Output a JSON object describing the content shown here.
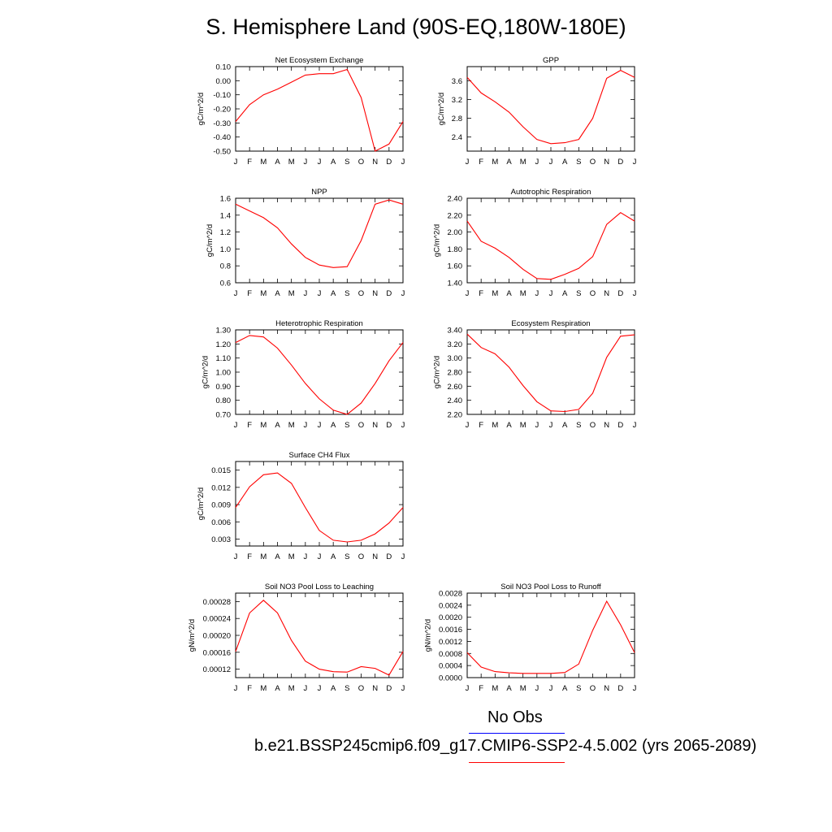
{
  "title": "S. Hemisphere Land (90S-EQ,180W-180E)",
  "colors": {
    "model_line": "#ff0000",
    "obs_line": "#0000ff",
    "axis": "#000000"
  },
  "legend": [
    {
      "label": "No Obs",
      "color": "#0000ff"
    },
    {
      "label": "b.e21.BSSP245cmip6.f09_g17.CMIP6-SSP2-4.5.002 (yrs 2065-2089)",
      "color": "#ff0000"
    }
  ],
  "chart_data": [
    {
      "type": "line",
      "title": "Net Ecosystem Exchange",
      "ylabel": "gC/m^2/d",
      "categories": [
        "J",
        "F",
        "M",
        "A",
        "M",
        "J",
        "J",
        "A",
        "S",
        "O",
        "N",
        "D",
        "J"
      ],
      "ylim": [
        -0.5,
        0.1
      ],
      "yticks": [
        0.1,
        0.0,
        -0.1,
        -0.2,
        -0.3,
        -0.4,
        -0.5
      ],
      "ytick_labels": [
        "0.10",
        "0.00",
        "-0.10",
        "-0.20",
        "-0.30",
        "-0.40",
        "-0.50"
      ],
      "series": [
        {
          "values": [
            -0.29,
            -0.17,
            -0.1,
            -0.06,
            -0.01,
            0.04,
            0.05,
            0.05,
            0.08,
            -0.12,
            -0.5,
            -0.45,
            -0.29
          ]
        }
      ]
    },
    {
      "type": "line",
      "title": "GPP",
      "ylabel": "gC/m^2/d",
      "categories": [
        "J",
        "F",
        "M",
        "A",
        "M",
        "J",
        "J",
        "A",
        "S",
        "O",
        "N",
        "D",
        "J"
      ],
      "ylim": [
        2.1,
        3.9
      ],
      "yticks": [
        3.6,
        3.2,
        2.8,
        2.4
      ],
      "ytick_labels": [
        "3.6",
        "3.2",
        "2.8",
        "2.4"
      ],
      "series": [
        {
          "values": [
            3.67,
            3.34,
            3.15,
            2.93,
            2.62,
            2.35,
            2.26,
            2.28,
            2.35,
            2.8,
            3.65,
            3.82,
            3.67
          ]
        }
      ]
    },
    {
      "type": "line",
      "title": "NPP",
      "ylabel": "gC/m^2/d",
      "categories": [
        "J",
        "F",
        "M",
        "A",
        "M",
        "J",
        "J",
        "A",
        "S",
        "O",
        "N",
        "D",
        "J"
      ],
      "ylim": [
        0.6,
        1.6
      ],
      "yticks": [
        1.6,
        1.4,
        1.2,
        1.0,
        0.8,
        0.6
      ],
      "ytick_labels": [
        "1.6",
        "1.4",
        "1.2",
        "1.0",
        "0.8",
        "0.6"
      ],
      "series": [
        {
          "values": [
            1.53,
            1.45,
            1.37,
            1.25,
            1.06,
            0.9,
            0.81,
            0.78,
            0.79,
            1.1,
            1.53,
            1.58,
            1.53
          ]
        }
      ]
    },
    {
      "type": "line",
      "title": "Autotrophic Respiration",
      "ylabel": "gC/m^2/d",
      "categories": [
        "J",
        "F",
        "M",
        "A",
        "M",
        "J",
        "J",
        "A",
        "S",
        "O",
        "N",
        "D",
        "J"
      ],
      "ylim": [
        1.4,
        2.4
      ],
      "yticks": [
        2.4,
        2.2,
        2.0,
        1.8,
        1.6,
        1.4
      ],
      "ytick_labels": [
        "2.40",
        "2.20",
        "2.00",
        "1.80",
        "1.60",
        "1.40"
      ],
      "series": [
        {
          "values": [
            2.13,
            1.89,
            1.81,
            1.7,
            1.56,
            1.45,
            1.44,
            1.5,
            1.57,
            1.71,
            2.09,
            2.23,
            2.13
          ]
        }
      ]
    },
    {
      "type": "line",
      "title": "Heterotrophic Respiration",
      "ylabel": "gC/m^2/d",
      "categories": [
        "J",
        "F",
        "M",
        "A",
        "M",
        "J",
        "J",
        "A",
        "S",
        "O",
        "N",
        "D",
        "J"
      ],
      "ylim": [
        0.7,
        1.3
      ],
      "yticks": [
        1.3,
        1.2,
        1.1,
        1.0,
        0.9,
        0.8,
        0.7
      ],
      "ytick_labels": [
        "1.30",
        "1.20",
        "1.10",
        "1.00",
        "0.90",
        "0.80",
        "0.70"
      ],
      "series": [
        {
          "values": [
            1.21,
            1.26,
            1.25,
            1.17,
            1.05,
            0.92,
            0.81,
            0.73,
            0.7,
            0.78,
            0.92,
            1.08,
            1.21
          ]
        }
      ]
    },
    {
      "type": "line",
      "title": "Ecosystem Respiration",
      "ylabel": "gC/m^2/d",
      "categories": [
        "J",
        "F",
        "M",
        "A",
        "M",
        "J",
        "J",
        "A",
        "S",
        "O",
        "N",
        "D",
        "J"
      ],
      "ylim": [
        2.2,
        3.4
      ],
      "yticks": [
        3.4,
        3.2,
        3.0,
        2.8,
        2.6,
        2.4,
        2.2
      ],
      "ytick_labels": [
        "3.40",
        "3.20",
        "3.00",
        "2.80",
        "2.60",
        "2.40",
        "2.20"
      ],
      "series": [
        {
          "values": [
            3.34,
            3.15,
            3.06,
            2.87,
            2.61,
            2.38,
            2.25,
            2.24,
            2.27,
            2.5,
            3.01,
            3.31,
            3.33
          ]
        }
      ]
    },
    {
      "type": "line",
      "title": "Surface CH4 Flux",
      "ylabel": "gC/m^2/d",
      "categories": [
        "J",
        "F",
        "M",
        "A",
        "M",
        "J",
        "J",
        "A",
        "S",
        "O",
        "N",
        "D",
        "J"
      ],
      "ylim": [
        0.0018,
        0.0165
      ],
      "yticks": [
        0.015,
        0.012,
        0.009,
        0.006,
        0.003
      ],
      "ytick_labels": [
        "0.015",
        "0.012",
        "0.009",
        "0.006",
        "0.003"
      ],
      "series": [
        {
          "values": [
            0.0085,
            0.0121,
            0.0142,
            0.0145,
            0.0127,
            0.0085,
            0.0045,
            0.0028,
            0.0025,
            0.0028,
            0.0039,
            0.0058,
            0.0085
          ]
        }
      ]
    },
    {
      "type": "line",
      "title": "Soil NO3 Pool Loss to Leaching",
      "ylabel": "gN/m^2/d",
      "categories": [
        "J",
        "F",
        "M",
        "A",
        "M",
        "J",
        "J",
        "A",
        "S",
        "O",
        "N",
        "D",
        "J"
      ],
      "ylim": [
        0.0001,
        0.0003
      ],
      "yticks": [
        0.00028,
        0.00024,
        0.0002,
        0.00016,
        0.00012
      ],
      "ytick_labels": [
        "0.00028",
        "0.00024",
        "0.00020",
        "0.00016",
        "0.00012"
      ],
      "series": [
        {
          "values": [
            0.000162,
            0.000253,
            0.000283,
            0.000253,
            0.000188,
            0.000139,
            0.00012,
            0.000114,
            0.000113,
            0.000126,
            0.000122,
            0.000106,
            0.000162
          ]
        }
      ]
    },
    {
      "type": "line",
      "title": "Soil NO3 Pool Loss to Runoff",
      "ylabel": "gN/m^2/d",
      "categories": [
        "J",
        "F",
        "M",
        "A",
        "M",
        "J",
        "J",
        "A",
        "S",
        "O",
        "N",
        "D",
        "J"
      ],
      "ylim": [
        0.0,
        0.0028
      ],
      "yticks": [
        0.0028,
        0.0024,
        0.002,
        0.0016,
        0.0012,
        0.0008,
        0.0004,
        0.0
      ],
      "ytick_labels": [
        "0.0028",
        "0.0024",
        "0.0020",
        "0.0016",
        "0.0012",
        "0.0008",
        "0.0004",
        "0.0000"
      ],
      "series": [
        {
          "values": [
            0.00083,
            0.00035,
            0.0002,
            0.00016,
            0.00014,
            0.00014,
            0.00014,
            0.00017,
            0.00045,
            0.00157,
            0.00253,
            0.00175,
            0.00083
          ]
        }
      ]
    }
  ]
}
